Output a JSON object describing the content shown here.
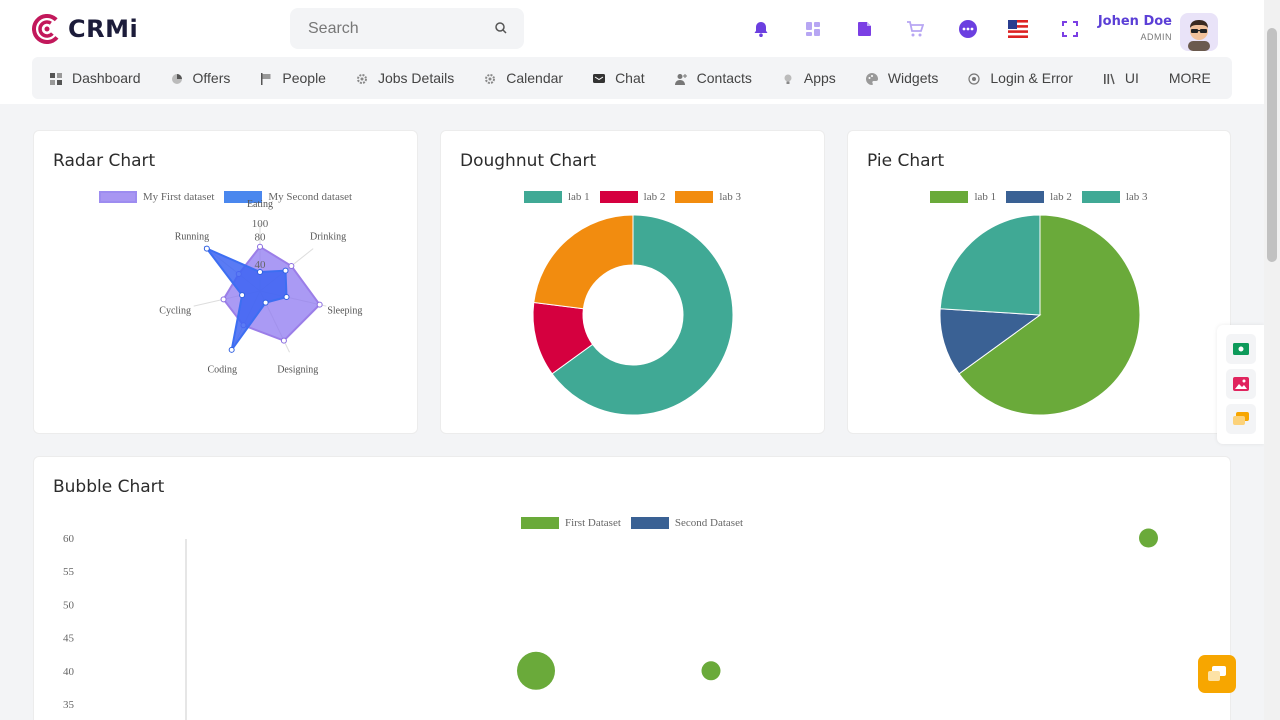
{
  "header": {
    "logo_text": "CRMi",
    "search_placeholder": "Search",
    "user_name": "Johen Doe",
    "user_role": "ADMIN"
  },
  "nav": [
    {
      "label": "Dashboard",
      "icon": "dashboard-icon"
    },
    {
      "label": "Offers",
      "icon": "pie-icon"
    },
    {
      "label": "People",
      "icon": "flag-icon"
    },
    {
      "label": "Jobs Details",
      "icon": "gear-icon"
    },
    {
      "label": "Calendar",
      "icon": "gear-icon"
    },
    {
      "label": "Chat",
      "icon": "message-icon"
    },
    {
      "label": "Contacts",
      "icon": "user-plus-icon"
    },
    {
      "label": "Apps",
      "icon": "bulb-icon"
    },
    {
      "label": "Widgets",
      "icon": "palette-icon"
    },
    {
      "label": "Login & Error",
      "icon": "target-icon"
    },
    {
      "label": "UI",
      "icon": "bars-icon"
    },
    {
      "label": "MORE",
      "icon": ""
    }
  ],
  "colors": {
    "accent": "#5b3fd6",
    "radar_first": "#9d8cf0",
    "radar_second": "#3d6ef2",
    "teal": "#40a995",
    "crimson": "#d5003f",
    "orange": "#f28c0f",
    "green": "#6aaa3a",
    "navy": "#3a6194"
  },
  "radar": {
    "title": "Radar Chart",
    "legend": [
      "My First dataset",
      "My Second dataset"
    ],
    "tick_labels": [
      "40",
      "80",
      "100"
    ]
  },
  "doughnut": {
    "title": "Doughnut Chart",
    "legend": [
      "lab 1",
      "lab 2",
      "lab 3"
    ]
  },
  "pie": {
    "title": "Pie Chart",
    "legend": [
      "lab 1",
      "lab 2",
      "lab 3"
    ]
  },
  "bubble": {
    "title": "Bubble Chart",
    "legend": [
      "First Dataset",
      "Second Dataset"
    ]
  },
  "chart_data": [
    {
      "type": "radar",
      "title": "Radar Chart",
      "labels": [
        "Eating",
        "Drinking",
        "Sleeping",
        "Designing",
        "Coding",
        "Cycling",
        "Running"
      ],
      "ticks": [
        40,
        80,
        100
      ],
      "range": [
        0,
        100
      ],
      "series": [
        {
          "name": "My First dataset",
          "values": [
            65,
            59,
            90,
            81,
            56,
            55,
            40
          ]
        },
        {
          "name": "My Second dataset",
          "values": [
            28,
            48,
            40,
            19,
            96,
            27,
            100
          ]
        }
      ],
      "legend": "top"
    },
    {
      "type": "doughnut",
      "title": "Doughnut Chart",
      "labels": [
        "lab 1",
        "lab 2",
        "lab 3"
      ],
      "values": [
        65,
        12,
        23
      ],
      "legend": "top"
    },
    {
      "type": "pie",
      "title": "Pie Chart",
      "labels": [
        "lab 1",
        "lab 2",
        "lab 3"
      ],
      "values": [
        65,
        11,
        24
      ],
      "legend": "top"
    },
    {
      "type": "bubble",
      "title": "Bubble Chart",
      "ylim": [
        35,
        60
      ],
      "yticks": [
        60,
        55,
        50,
        45,
        40,
        35
      ],
      "series": [
        {
          "name": "First Dataset",
          "points": [
            {
              "x": 20,
              "y": 40,
              "r": 19
            },
            {
              "x": 30,
              "y": 40,
              "r": 9.5
            },
            {
              "x": 55,
              "y": 60,
              "r": 9.5
            }
          ]
        },
        {
          "name": "Second Dataset",
          "points": []
        }
      ],
      "legend": "top"
    }
  ]
}
